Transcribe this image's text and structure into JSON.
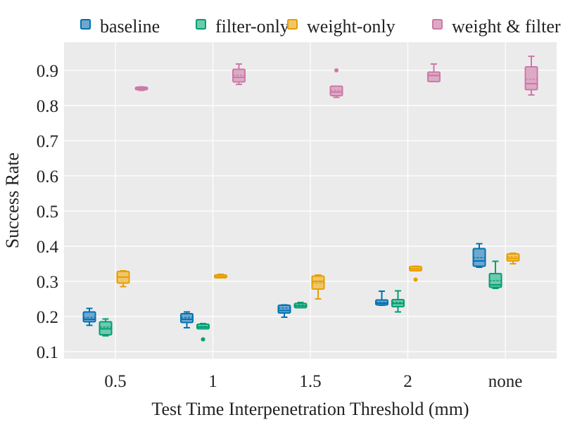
{
  "chart_data": {
    "type": "boxplot",
    "title": "",
    "xlabel": "Test Time Interpenetration Threshold (mm)",
    "ylabel": "Success Rate",
    "categories": [
      "0.5",
      "1",
      "1.5",
      "2",
      "none"
    ],
    "ylim": [
      0.08,
      0.98
    ],
    "yticks": [
      0.1,
      0.2,
      0.3,
      0.4,
      0.5,
      0.6,
      0.7,
      0.8,
      0.9
    ],
    "ytick_labels": [
      "0.1",
      "0.2",
      "0.3",
      "0.4",
      "0.5",
      "0.6",
      "0.7",
      "0.8",
      "0.9"
    ],
    "grid": true,
    "legend_position": "top",
    "series": [
      {
        "name": "baseline",
        "color": "#0072B2",
        "fill": "#6FA7CF",
        "boxes": [
          {
            "whislo": 0.175,
            "q1": 0.185,
            "med": 0.192,
            "mean": 0.197,
            "q3": 0.213,
            "whishi": 0.223,
            "fliers": []
          },
          {
            "whislo": 0.168,
            "q1": 0.183,
            "med": 0.192,
            "mean": 0.197,
            "q3": 0.208,
            "whishi": 0.213,
            "fliers": []
          },
          {
            "whislo": 0.198,
            "q1": 0.21,
            "med": 0.217,
            "mean": 0.224,
            "q3": 0.232,
            "whishi": 0.233,
            "fliers": []
          },
          {
            "whislo": 0.232,
            "q1": 0.233,
            "med": 0.238,
            "mean": 0.24,
            "q3": 0.247,
            "whishi": 0.272,
            "fliers": []
          },
          {
            "whislo": 0.34,
            "q1": 0.343,
            "med": 0.358,
            "mean": 0.367,
            "q3": 0.393,
            "whishi": 0.407,
            "fliers": []
          }
        ]
      },
      {
        "name": "filter-only",
        "color": "#009E73",
        "fill": "#6FC9AE",
        "boxes": [
          {
            "whislo": 0.145,
            "q1": 0.148,
            "med": 0.165,
            "mean": 0.17,
            "q3": 0.185,
            "whishi": 0.193,
            "fliers": []
          },
          {
            "whislo": 0.165,
            "q1": 0.165,
            "med": 0.17,
            "mean": 0.172,
            "q3": 0.178,
            "whishi": 0.18,
            "fliers": [
              0.135
            ]
          },
          {
            "whislo": 0.225,
            "q1": 0.225,
            "med": 0.23,
            "mean": 0.232,
            "q3": 0.237,
            "whishi": 0.24,
            "fliers": []
          },
          {
            "whislo": 0.213,
            "q1": 0.228,
            "med": 0.237,
            "mean": 0.24,
            "q3": 0.248,
            "whishi": 0.273,
            "fliers": []
          },
          {
            "whislo": 0.28,
            "q1": 0.283,
            "med": 0.29,
            "mean": 0.302,
            "q3": 0.322,
            "whishi": 0.357,
            "fliers": []
          }
        ]
      },
      {
        "name": "weight-only",
        "color": "#E69F00",
        "fill": "#F0C66A",
        "boxes": [
          {
            "whislo": 0.285,
            "q1": 0.295,
            "med": 0.312,
            "mean": 0.312,
            "q3": 0.328,
            "whishi": 0.33,
            "fliers": []
          },
          {
            "whislo": 0.31,
            "q1": 0.31,
            "med": 0.313,
            "mean": 0.314,
            "q3": 0.318,
            "whishi": 0.32,
            "fliers": []
          },
          {
            "whislo": 0.25,
            "q1": 0.278,
            "med": 0.3,
            "mean": 0.295,
            "q3": 0.315,
            "whishi": 0.318,
            "fliers": []
          },
          {
            "whislo": 0.33,
            "q1": 0.33,
            "med": 0.335,
            "mean": 0.337,
            "q3": 0.342,
            "whishi": 0.343,
            "fliers": [
              0.305
            ]
          },
          {
            "whislo": 0.35,
            "q1": 0.358,
            "med": 0.365,
            "mean": 0.37,
            "q3": 0.378,
            "whishi": 0.38,
            "fliers": []
          }
        ]
      },
      {
        "name": "weight & filter",
        "color": "#CC79A7",
        "fill": "#DDAAC6",
        "boxes": [
          {
            "whislo": 0.843,
            "q1": 0.845,
            "med": 0.848,
            "mean": 0.849,
            "q3": 0.852,
            "whishi": 0.853,
            "fliers": []
          },
          {
            "whislo": 0.86,
            "q1": 0.867,
            "med": 0.88,
            "mean": 0.886,
            "q3": 0.903,
            "whishi": 0.918,
            "fliers": []
          },
          {
            "whislo": 0.823,
            "q1": 0.828,
            "med": 0.838,
            "mean": 0.843,
            "q3": 0.855,
            "whishi": 0.855,
            "fliers": [
              0.9
            ]
          },
          {
            "whislo": 0.868,
            "q1": 0.868,
            "med": 0.885,
            "mean": 0.887,
            "q3": 0.895,
            "whishi": 0.918,
            "fliers": []
          },
          {
            "whislo": 0.83,
            "q1": 0.845,
            "med": 0.862,
            "mean": 0.875,
            "q3": 0.91,
            "whishi": 0.94,
            "fliers": []
          }
        ]
      }
    ]
  }
}
